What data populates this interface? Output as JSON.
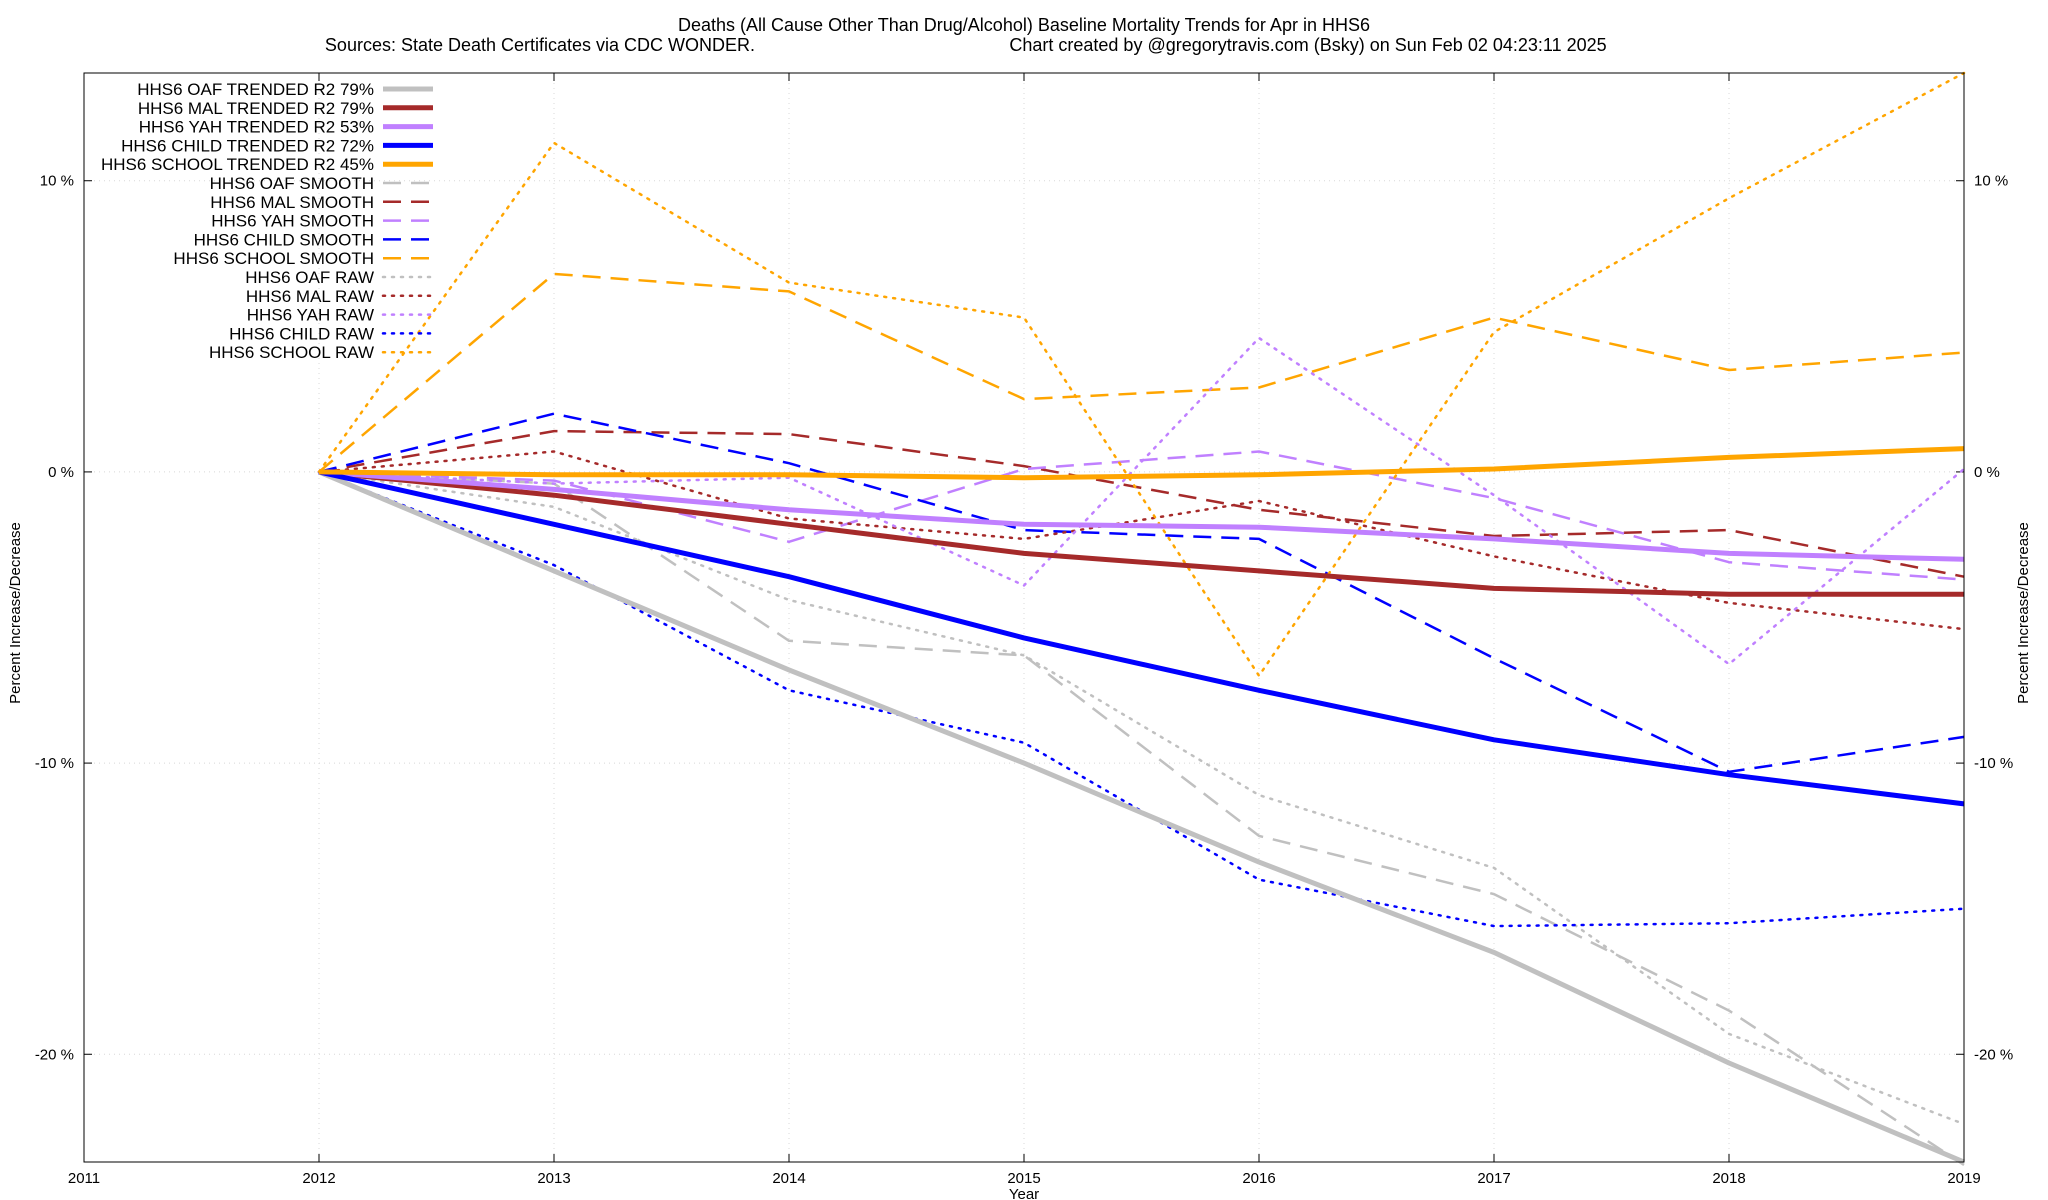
{
  "title_line1": "Deaths (All Cause Other Than Drug/Alcohol)  Baseline Mortality Trends for Apr in HHS6",
  "title_line2_left": "Sources: State Death Certificates via CDC WONDER.",
  "title_line2_right": "Chart created by @gregorytravis.com (Bsky) on Sun Feb 02 04:23:11 2025",
  "chart_data": {
    "type": "line",
    "title": "Deaths (All Cause Other Than Drug/Alcohol)  Baseline Mortality Trends for Apr in HHS6",
    "xlabel": "Year",
    "ylabel": "Percent Increase/Decrease",
    "xlim": [
      2011,
      2019
    ],
    "ylim": [
      -23.7,
      13.7
    ],
    "x_ticks": [
      "2011",
      "2012",
      "2013",
      "2014",
      "2015",
      "2016",
      "2017",
      "2018",
      "2019"
    ],
    "y_ticks": [
      {
        "value": 10,
        "label": "10 %"
      },
      {
        "value": 0,
        "label": "0 %"
      },
      {
        "value": -10,
        "label": "-10 %"
      },
      {
        "value": -20,
        "label": "-20 %"
      }
    ],
    "grid": true,
    "legend_position": "top-left",
    "x": [
      2012,
      2013,
      2014,
      2015,
      2016,
      2017,
      2018,
      2019
    ],
    "series": [
      {
        "name": "HHS6 OAF TRENDED R2  79%",
        "style": "solid",
        "color": "#c0c0c0",
        "width": 5,
        "values": [
          0,
          -3.4,
          -6.8,
          -10.0,
          -13.4,
          -16.5,
          -20.3,
          -23.7
        ]
      },
      {
        "name": "HHS6 MAL TRENDED R2  79%",
        "style": "solid",
        "color": "#a52a2a",
        "width": 5,
        "values": [
          0,
          -0.8,
          -1.8,
          -2.8,
          -3.4,
          -4.0,
          -4.2,
          -4.2
        ]
      },
      {
        "name": "HHS6 YAH TRENDED R2  53%",
        "style": "solid",
        "color": "#c080ff",
        "width": 5,
        "values": [
          0,
          -0.6,
          -1.3,
          -1.8,
          -1.9,
          -2.3,
          -2.8,
          -3.0
        ]
      },
      {
        "name": "HHS6 CHILD TRENDED R2  72%",
        "style": "solid",
        "color": "#0000ff",
        "width": 5,
        "values": [
          0,
          -1.8,
          -3.6,
          -5.7,
          -7.5,
          -9.2,
          -10.4,
          -11.4
        ]
      },
      {
        "name": "HHS6 SCHOOL TRENDED R2  45%",
        "style": "solid",
        "color": "#ffa500",
        "width": 5,
        "values": [
          0,
          -0.1,
          -0.1,
          -0.2,
          -0.1,
          0.1,
          0.5,
          0.8
        ]
      },
      {
        "name": "HHS6 OAF SMOOTH",
        "style": "dashed",
        "color": "#c0c0c0",
        "width": 2.5,
        "values": [
          0,
          -0.4,
          -5.8,
          -6.3,
          -12.5,
          -14.5,
          -18.5,
          -23.8
        ]
      },
      {
        "name": "HHS6 MAL SMOOTH",
        "style": "dashed",
        "color": "#a52a2a",
        "width": 2.5,
        "values": [
          0,
          1.4,
          1.3,
          0.2,
          -1.3,
          -2.2,
          -2.0,
          -3.6
        ]
      },
      {
        "name": "HHS6 YAH SMOOTH",
        "style": "dashed",
        "color": "#c080ff",
        "width": 2.5,
        "values": [
          0,
          -0.3,
          -2.4,
          0.1,
          0.7,
          -0.9,
          -3.1,
          -3.7
        ]
      },
      {
        "name": "HHS6 CHILD SMOOTH",
        "style": "dashed",
        "color": "#0000ff",
        "width": 2.5,
        "values": [
          0,
          2.0,
          0.3,
          -2.0,
          -2.3,
          -6.4,
          -10.3,
          -9.1
        ]
      },
      {
        "name": "HHS6 SCHOOL SMOOTH",
        "style": "dashed",
        "color": "#ffa500",
        "width": 2.5,
        "values": [
          0,
          6.8,
          6.2,
          2.5,
          2.9,
          5.3,
          3.5,
          4.1
        ]
      },
      {
        "name": "HHS6 OAF RAW",
        "style": "dotted",
        "color": "#c0c0c0",
        "width": 2.5,
        "values": [
          0,
          -1.2,
          -4.4,
          -6.3,
          -11.1,
          -13.6,
          -19.3,
          -22.4
        ]
      },
      {
        "name": "HHS6 MAL RAW",
        "style": "dotted",
        "color": "#a52a2a",
        "width": 2.5,
        "values": [
          0,
          0.7,
          -1.6,
          -2.3,
          -1.0,
          -2.9,
          -4.5,
          -5.4
        ]
      },
      {
        "name": "HHS6 YAH RAW",
        "style": "dotted",
        "color": "#c080ff",
        "width": 2.5,
        "values": [
          0,
          -0.4,
          -0.2,
          -3.9,
          4.6,
          -0.8,
          -6.6,
          0.1
        ]
      },
      {
        "name": "HHS6 CHILD RAW",
        "style": "dotted",
        "color": "#0000ff",
        "width": 2.5,
        "values": [
          0,
          -3.2,
          -7.5,
          -9.3,
          -14.0,
          -15.6,
          -15.5,
          -15.0
        ]
      },
      {
        "name": "HHS6 SCHOOL RAW",
        "style": "dotted",
        "color": "#ffa500",
        "width": 2.5,
        "values": [
          0,
          11.3,
          6.5,
          5.3,
          -7.0,
          4.8,
          9.4,
          13.7
        ]
      }
    ]
  }
}
